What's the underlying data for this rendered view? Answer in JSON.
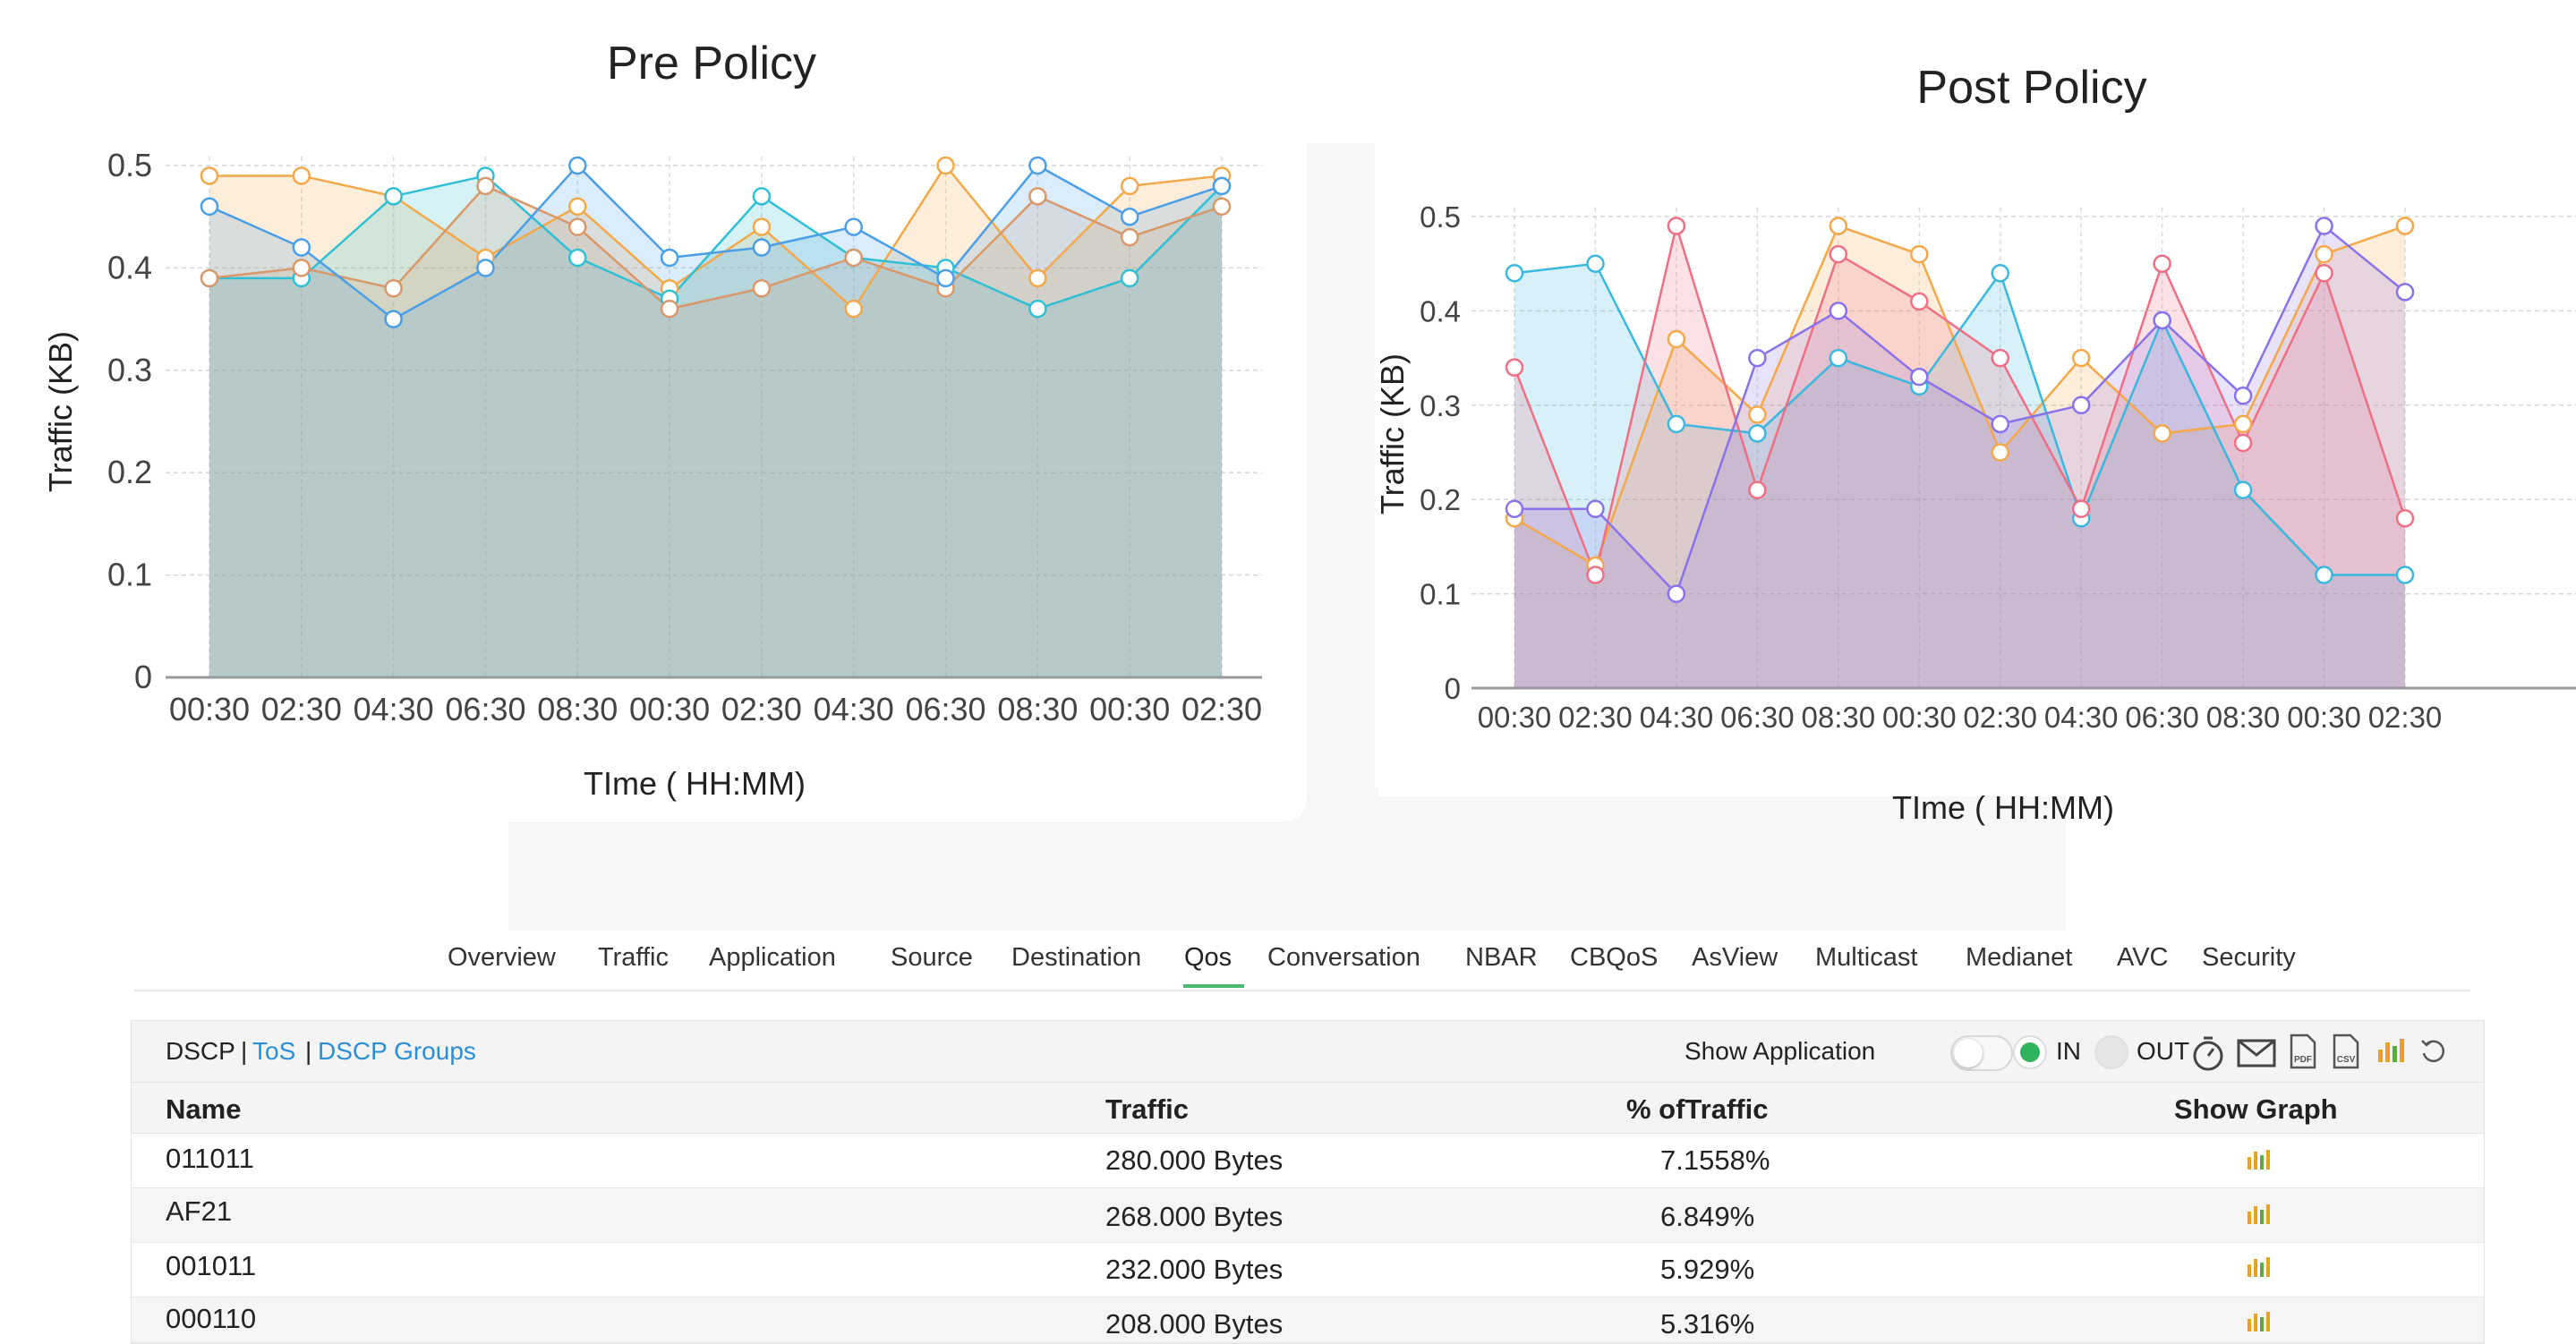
{
  "colors": {
    "orange": "#f3a84a",
    "teal": "#2fc0d4",
    "blue": "#4a9fe6",
    "brown": "#d9986a",
    "purple": "#8a72ea",
    "pink": "#ee6f86",
    "cyan": "#3ab8de",
    "tab_underline": "#4cba6e",
    "link": "#2a8fd6",
    "radio_on": "#2fb35d"
  },
  "charts": [
    {
      "id": "pre",
      "title": "Pre Policy",
      "xlabel": "TIme ( HH:MM)",
      "ylabel": "Traffic (KB)",
      "yticks": [
        "0",
        "0.1",
        "0.2",
        "0.3",
        "0.4",
        "0.5"
      ],
      "categories": [
        "00:30",
        "02:30",
        "04:30",
        "06:30",
        "08:30",
        "00:30",
        "02:30",
        "04:30",
        "06:30",
        "08:30",
        "00:30",
        "02:30"
      ],
      "series": [
        {
          "color": "#f3a84a",
          "values": [
            0.49,
            0.49,
            0.47,
            0.41,
            0.46,
            0.38,
            0.44,
            0.36,
            0.5,
            0.39,
            0.48,
            0.49
          ]
        },
        {
          "color": "#2fc0d4",
          "values": [
            0.39,
            0.39,
            0.47,
            0.49,
            0.41,
            0.37,
            0.47,
            0.41,
            0.4,
            0.36,
            0.39,
            0.48
          ]
        },
        {
          "color": "#d9986a",
          "values": [
            0.39,
            0.4,
            0.38,
            0.48,
            0.44,
            0.36,
            0.38,
            0.41,
            0.38,
            0.47,
            0.43,
            0.46
          ]
        },
        {
          "color": "#4a9fe6",
          "values": [
            0.46,
            0.42,
            0.35,
            0.4,
            0.5,
            0.41,
            0.42,
            0.44,
            0.39,
            0.5,
            0.45,
            0.48
          ]
        }
      ]
    },
    {
      "id": "post",
      "title": "Post Policy",
      "xlabel": "TIme ( HH:MM)",
      "ylabel": "Traffic (KB)",
      "yticks": [
        "0",
        "0.1",
        "0.2",
        "0.3",
        "0.4",
        "0.5"
      ],
      "categories": [
        "00:30",
        "02:30",
        "04:30",
        "06:30",
        "08:30",
        "00:30",
        "02:30",
        "04:30",
        "06:30",
        "08:30",
        "00:30",
        "02:30"
      ],
      "series": [
        {
          "color": "#f3a84a",
          "values": [
            0.18,
            0.13,
            0.37,
            0.29,
            0.49,
            0.46,
            0.25,
            0.35,
            0.27,
            0.28,
            0.46,
            0.49
          ]
        },
        {
          "color": "#3ab8de",
          "values": [
            0.44,
            0.45,
            0.28,
            0.27,
            0.35,
            0.32,
            0.44,
            0.18,
            0.39,
            0.21,
            0.12,
            0.12
          ]
        },
        {
          "color": "#ee6f86",
          "values": [
            0.34,
            0.12,
            0.49,
            0.21,
            0.46,
            0.41,
            0.35,
            0.19,
            0.45,
            0.26,
            0.44,
            0.18
          ]
        },
        {
          "color": "#8a72ea",
          "values": [
            0.19,
            0.19,
            0.1,
            0.35,
            0.4,
            0.33,
            0.28,
            0.3,
            0.39,
            0.31,
            0.49,
            0.42
          ]
        }
      ]
    }
  ],
  "tabs": [
    {
      "label": "Overview",
      "active": false
    },
    {
      "label": "Traffic",
      "active": false
    },
    {
      "label": "Application",
      "active": false
    },
    {
      "label": "Source",
      "active": false
    },
    {
      "label": "Destination",
      "active": false
    },
    {
      "label": "Qos",
      "active": true
    },
    {
      "label": "Conversation",
      "active": false
    },
    {
      "label": "NBAR",
      "active": false
    },
    {
      "label": "CBQoS",
      "active": false
    },
    {
      "label": "AsView",
      "active": false
    },
    {
      "label": "Multicast",
      "active": false
    },
    {
      "label": "Medianet",
      "active": false
    },
    {
      "label": "AVC",
      "active": false
    },
    {
      "label": "Security",
      "active": false
    }
  ],
  "toolbar": {
    "dscp": "DSCP",
    "sep": "|",
    "tos": "ToS",
    "dscp_groups": "DSCP Groups",
    "show_application": "Show Application",
    "in_label": "IN",
    "out_label": "OUT",
    "icons": [
      "stopwatch-icon",
      "mail-icon",
      "pdf-icon",
      "csv-icon",
      "chart-icon",
      "refresh-icon"
    ]
  },
  "table": {
    "headers": [
      "Name",
      "Traffic",
      "% ofTraffic",
      "Show Graph"
    ],
    "rows": [
      {
        "name": "011011",
        "traffic": "280.000 Bytes",
        "percent": "7.1558%"
      },
      {
        "name": "AF21",
        "traffic": "268.000 Bytes",
        "percent": "6.849%"
      },
      {
        "name": "001011",
        "traffic": "232.000 Bytes",
        "percent": "5.929%"
      },
      {
        "name": "000110",
        "traffic": "208.000 Bytes",
        "percent": "5.316%"
      }
    ]
  }
}
